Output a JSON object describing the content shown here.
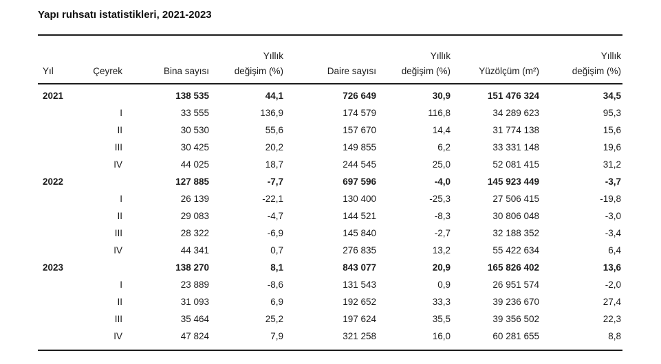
{
  "title": "Yapı ruhsatı istatistikleri, 2021-2023",
  "styles": {
    "background": "#ffffff",
    "text_color": "#1b1b1b",
    "rule_color": "#1b1b1b"
  },
  "chart_data": {
    "type": "table",
    "title": "Yapı ruhsatı istatistikleri, 2021-2023",
    "columns": [
      {
        "id": "yil",
        "label": "Yıl",
        "align": "left"
      },
      {
        "id": "ceyrek",
        "label": "Çeyrek",
        "align": "right"
      },
      {
        "id": "bina-sayisi",
        "label": "Bina sayısı",
        "align": "right"
      },
      {
        "id": "bina-yillik-degisim",
        "label": "Yıllık\ndeğişim (%)",
        "align": "right"
      },
      {
        "id": "daire-sayisi",
        "label": "Daire sayısı",
        "align": "right"
      },
      {
        "id": "daire-yillik-degisim",
        "label": "Yıllık\ndeğişim (%)",
        "align": "right"
      },
      {
        "id": "yuzolcum",
        "label": "Yüzölçüm (m²)",
        "align": "right"
      },
      {
        "id": "yuzolcum-yillik-degisim",
        "label": "Yıllık\ndeğişim (%)",
        "align": "right"
      }
    ],
    "rows": [
      {
        "bold": true,
        "cells": [
          "2021",
          "",
          "138 535",
          "44,1",
          "726 649",
          "30,9",
          "151 476 324",
          "34,5"
        ]
      },
      {
        "bold": false,
        "cells": [
          "",
          "I",
          "33 555",
          "136,9",
          "174 579",
          "116,8",
          "34 289 623",
          "95,3"
        ]
      },
      {
        "bold": false,
        "cells": [
          "",
          "II",
          "30 530",
          "55,6",
          "157 670",
          "14,4",
          "31 774 138",
          "15,6"
        ]
      },
      {
        "bold": false,
        "cells": [
          "",
          "III",
          "30 425",
          "20,2",
          "149 855",
          "6,2",
          "33 331 148",
          "19,6"
        ]
      },
      {
        "bold": false,
        "cells": [
          "",
          "IV",
          "44 025",
          "18,7",
          "244 545",
          "25,0",
          "52 081 415",
          "31,2"
        ]
      },
      {
        "bold": true,
        "cells": [
          "2022",
          "",
          "127 885",
          "-7,7",
          "697 596",
          "-4,0",
          "145 923 449",
          "-3,7"
        ]
      },
      {
        "bold": false,
        "cells": [
          "",
          "I",
          "26 139",
          "-22,1",
          "130 400",
          "-25,3",
          "27 506 415",
          "-19,8"
        ]
      },
      {
        "bold": false,
        "cells": [
          "",
          "II",
          "29 083",
          "-4,7",
          "144 521",
          "-8,3",
          "30 806 048",
          "-3,0"
        ]
      },
      {
        "bold": false,
        "cells": [
          "",
          "III",
          "28 322",
          "-6,9",
          "145 840",
          "-2,7",
          "32 188 352",
          "-3,4"
        ]
      },
      {
        "bold": false,
        "cells": [
          "",
          "IV",
          "44 341",
          "0,7",
          "276 835",
          "13,2",
          "55 422 634",
          "6,4"
        ]
      },
      {
        "bold": true,
        "cells": [
          "2023",
          "",
          "138 270",
          "8,1",
          "843 077",
          "20,9",
          "165 826 402",
          "13,6"
        ]
      },
      {
        "bold": false,
        "cells": [
          "",
          "I",
          "23 889",
          "-8,6",
          "131 543",
          "0,9",
          "26 951 574",
          "-2,0"
        ]
      },
      {
        "bold": false,
        "cells": [
          "",
          "II",
          "31 093",
          "6,9",
          "192 652",
          "33,3",
          "39 236 670",
          "27,4"
        ]
      },
      {
        "bold": false,
        "cells": [
          "",
          "III",
          "35 464",
          "25,2",
          "197 624",
          "35,5",
          "39 356 502",
          "22,3"
        ]
      },
      {
        "bold": false,
        "cells": [
          "",
          "IV",
          "47 824",
          "7,9",
          "321 258",
          "16,0",
          "60 281 655",
          "8,8"
        ]
      }
    ]
  }
}
